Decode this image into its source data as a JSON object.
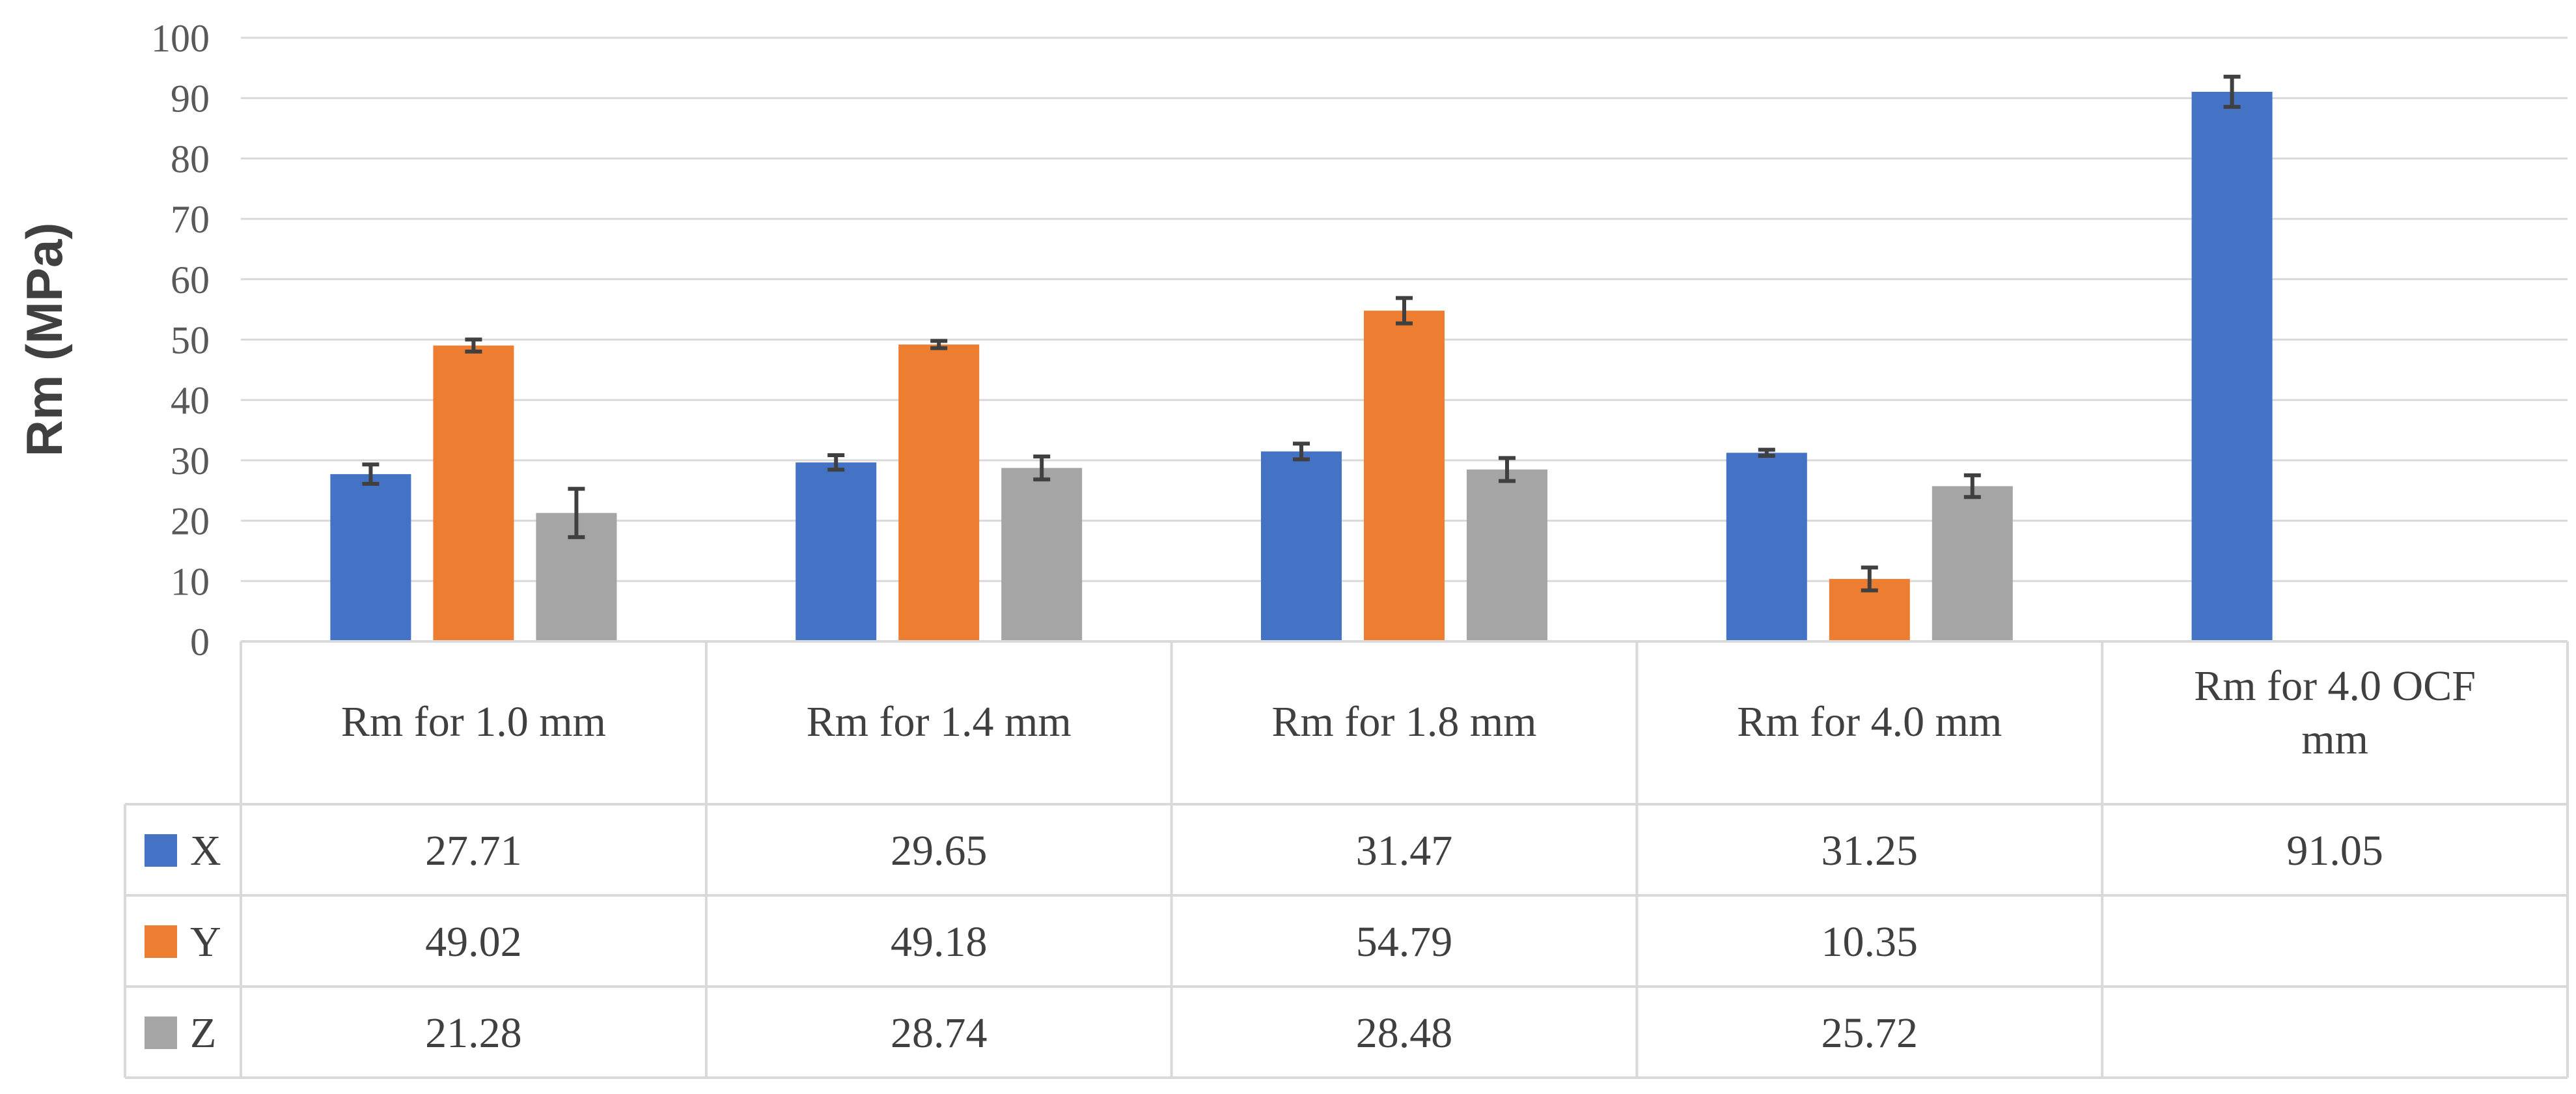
{
  "chart_data": {
    "type": "bar",
    "title": "",
    "xlabel": "",
    "ylabel": "Rm (MPa)",
    "ylim": [
      0,
      100
    ],
    "yticks": [
      0,
      10,
      20,
      30,
      40,
      50,
      60,
      70,
      80,
      90,
      100
    ],
    "grid": true,
    "legend": "data-table",
    "categories": [
      "Rm for 1.0 mm",
      "Rm   for  1.4 mm",
      "Rm  for  1.8 mm",
      "Rm  for 4.0 mm",
      "Rm  for 4.0 OCF mm"
    ],
    "series": [
      {
        "name": "X",
        "color": "#4472C4",
        "values": [
          27.71,
          29.65,
          31.47,
          31.25,
          91.05
        ],
        "labels": [
          "27.71",
          "29.65",
          "31.47",
          "31.25",
          "91.05"
        ],
        "errors": [
          1.6,
          1.2,
          1.3,
          0.5,
          2.5
        ]
      },
      {
        "name": "Y",
        "color": "#ED7D31",
        "values": [
          49.02,
          49.18,
          54.79,
          10.35,
          null
        ],
        "labels": [
          "49.02",
          "49.18",
          "54.79",
          "10.35",
          ""
        ],
        "errors": [
          1.0,
          0.6,
          2.1,
          1.9,
          null
        ]
      },
      {
        "name": "Z",
        "color": "#A5A5A5",
        "values": [
          21.28,
          28.74,
          28.48,
          25.72,
          null
        ],
        "labels": [
          "21.28",
          "28.74",
          "28.48",
          "25.72",
          ""
        ],
        "errors": [
          4.0,
          1.9,
          1.9,
          1.8,
          null
        ]
      }
    ]
  }
}
